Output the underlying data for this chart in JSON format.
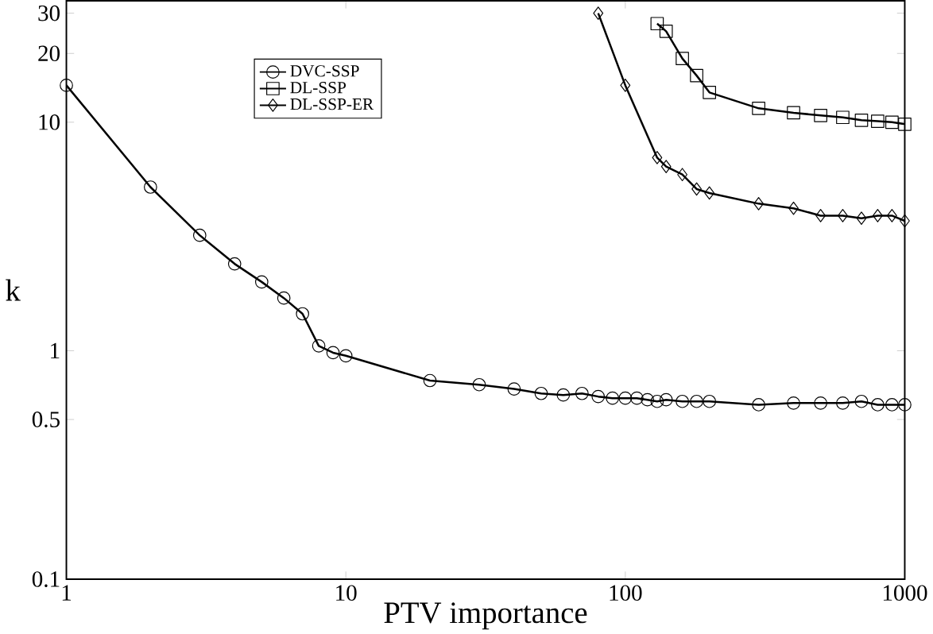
{
  "chart_data": {
    "type": "line",
    "xlabel": "PTV importance",
    "ylabel": "k",
    "log": "xy",
    "grid": false,
    "legend": "top",
    "line_style": "solid",
    "xlim": [
      1,
      1000
    ],
    "ylim": [
      0.1,
      34
    ],
    "xticks": [
      1,
      10,
      100,
      1000
    ],
    "yticks": [
      0.1,
      0.5,
      1,
      10,
      20,
      30
    ],
    "series": [
      {
        "name": "DVC-SSP",
        "color": "#000000",
        "marker": "circle",
        "x": [
          1,
          2,
          3,
          4,
          5,
          6,
          7,
          8,
          9,
          10,
          20,
          30,
          40,
          50,
          60,
          70,
          80,
          90,
          100,
          110,
          120,
          130,
          140,
          160,
          180,
          200,
          300,
          400,
          500,
          600,
          700,
          800,
          900,
          1000
        ],
        "values": [
          14.5,
          5.2,
          3.2,
          2.4,
          2.0,
          1.7,
          1.45,
          1.05,
          0.98,
          0.95,
          0.74,
          0.71,
          0.68,
          0.65,
          0.64,
          0.65,
          0.63,
          0.62,
          0.62,
          0.62,
          0.61,
          0.6,
          0.61,
          0.6,
          0.6,
          0.6,
          0.58,
          0.59,
          0.59,
          0.59,
          0.6,
          0.58,
          0.58,
          0.58
        ]
      },
      {
        "name": "DL-SSP",
        "color": "#000000",
        "marker": "square",
        "x": [
          130,
          140,
          160,
          180,
          200,
          300,
          400,
          500,
          600,
          700,
          800,
          900,
          1000
        ],
        "values": [
          27,
          25,
          19,
          16,
          13.5,
          11.5,
          11,
          10.7,
          10.5,
          10.2,
          10.1,
          10,
          9.8
        ]
      },
      {
        "name": "DL-SSP-ER",
        "color": "#000000",
        "marker": "diamond",
        "x": [
          80,
          100,
          130,
          140,
          160,
          180,
          200,
          300,
          400,
          500,
          600,
          700,
          800,
          900,
          1000
        ],
        "values": [
          30,
          14.5,
          7.0,
          6.4,
          5.9,
          5.1,
          4.9,
          4.4,
          4.2,
          3.9,
          3.9,
          3.8,
          3.9,
          3.9,
          3.7
        ]
      }
    ]
  }
}
